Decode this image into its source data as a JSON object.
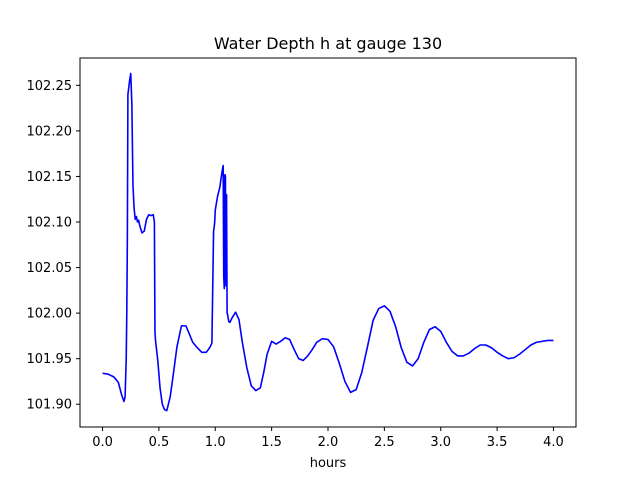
{
  "chart_data": {
    "type": "line",
    "title": "Water Depth h at gauge 130",
    "xlabel": "hours",
    "ylabel": "",
    "xlim": [
      -0.2,
      4.2
    ],
    "ylim": [
      101.875,
      102.28
    ],
    "xticks": [
      0.0,
      0.5,
      1.0,
      1.5,
      2.0,
      2.5,
      3.0,
      3.5,
      4.0
    ],
    "xtick_labels": [
      "0.0",
      "0.5",
      "1.0",
      "1.5",
      "2.0",
      "2.5",
      "3.0",
      "3.5",
      "4.0"
    ],
    "yticks": [
      101.9,
      101.95,
      102.0,
      102.05,
      102.1,
      102.15,
      102.2,
      102.25
    ],
    "ytick_labels": [
      "101.90",
      "101.95",
      "102.00",
      "102.05",
      "102.10",
      "102.15",
      "102.20",
      "102.25"
    ],
    "grid": false,
    "color": "#0000ff",
    "series": [
      {
        "x": [
          0.0,
          0.05,
          0.1,
          0.14,
          0.17,
          0.19,
          0.2,
          0.21,
          0.215,
          0.22,
          0.225,
          0.24,
          0.25,
          0.26,
          0.27,
          0.28,
          0.29,
          0.3,
          0.31,
          0.32,
          0.33,
          0.35,
          0.37,
          0.39,
          0.41,
          0.43,
          0.45,
          0.46,
          0.465,
          0.47,
          0.49,
          0.51,
          0.53,
          0.55,
          0.57,
          0.6,
          0.63,
          0.66,
          0.7,
          0.74,
          0.77,
          0.8,
          0.84,
          0.88,
          0.92,
          0.95,
          0.97,
          0.985,
          0.99,
          0.995,
          1.0,
          1.02,
          1.04,
          1.06,
          1.07,
          1.075,
          1.08,
          1.085,
          1.09,
          1.095,
          1.1,
          1.105,
          1.11,
          1.115,
          1.12,
          1.125,
          1.13,
          1.15,
          1.18,
          1.21,
          1.24,
          1.28,
          1.32,
          1.36,
          1.4,
          1.43,
          1.46,
          1.5,
          1.54,
          1.58,
          1.62,
          1.66,
          1.7,
          1.74,
          1.78,
          1.82,
          1.86,
          1.9,
          1.95,
          2.0,
          2.05,
          2.1,
          2.15,
          2.2,
          2.25,
          2.3,
          2.35,
          2.4,
          2.45,
          2.5,
          2.55,
          2.6,
          2.65,
          2.7,
          2.75,
          2.8,
          2.85,
          2.9,
          2.95,
          3.0,
          3.05,
          3.1,
          3.15,
          3.2,
          3.25,
          3.3,
          3.35,
          3.4,
          3.45,
          3.5,
          3.55,
          3.6,
          3.65,
          3.7,
          3.75,
          3.8,
          3.85,
          3.9,
          3.95,
          4.0
        ],
        "y": [
          101.934,
          101.933,
          101.93,
          101.924,
          101.91,
          101.903,
          101.908,
          101.95,
          102.0,
          102.08,
          102.24,
          102.255,
          102.263,
          102.23,
          102.14,
          102.115,
          102.103,
          102.106,
          102.1,
          102.102,
          102.096,
          102.088,
          102.09,
          102.103,
          102.108,
          102.107,
          102.108,
          102.1,
          101.979,
          101.97,
          101.948,
          101.918,
          101.9,
          101.894,
          101.893,
          101.908,
          101.935,
          101.963,
          101.986,
          101.986,
          101.977,
          101.968,
          101.962,
          101.957,
          101.957,
          101.962,
          101.967,
          102.09,
          102.094,
          102.1,
          102.113,
          102.128,
          102.138,
          102.155,
          102.162,
          102.04,
          102.027,
          102.152,
          102.15,
          102.03,
          102.13,
          102.0,
          101.998,
          101.994,
          101.991,
          101.99,
          101.99,
          101.995,
          102.001,
          101.993,
          101.968,
          101.94,
          101.92,
          101.915,
          101.918,
          101.935,
          101.955,
          101.969,
          101.966,
          101.969,
          101.973,
          101.971,
          101.96,
          101.95,
          101.948,
          101.953,
          101.96,
          101.968,
          101.972,
          101.971,
          101.963,
          101.945,
          101.925,
          101.913,
          101.916,
          101.935,
          101.963,
          101.992,
          102.005,
          102.008,
          102.002,
          101.985,
          101.962,
          101.946,
          101.942,
          101.95,
          101.968,
          101.982,
          101.985,
          101.98,
          101.968,
          101.958,
          101.953,
          101.953,
          101.956,
          101.961,
          101.965,
          101.965,
          101.962,
          101.957,
          101.953,
          101.95,
          101.951,
          101.955,
          101.96,
          101.965,
          101.968,
          101.969,
          101.97,
          101.97
        ]
      }
    ]
  }
}
